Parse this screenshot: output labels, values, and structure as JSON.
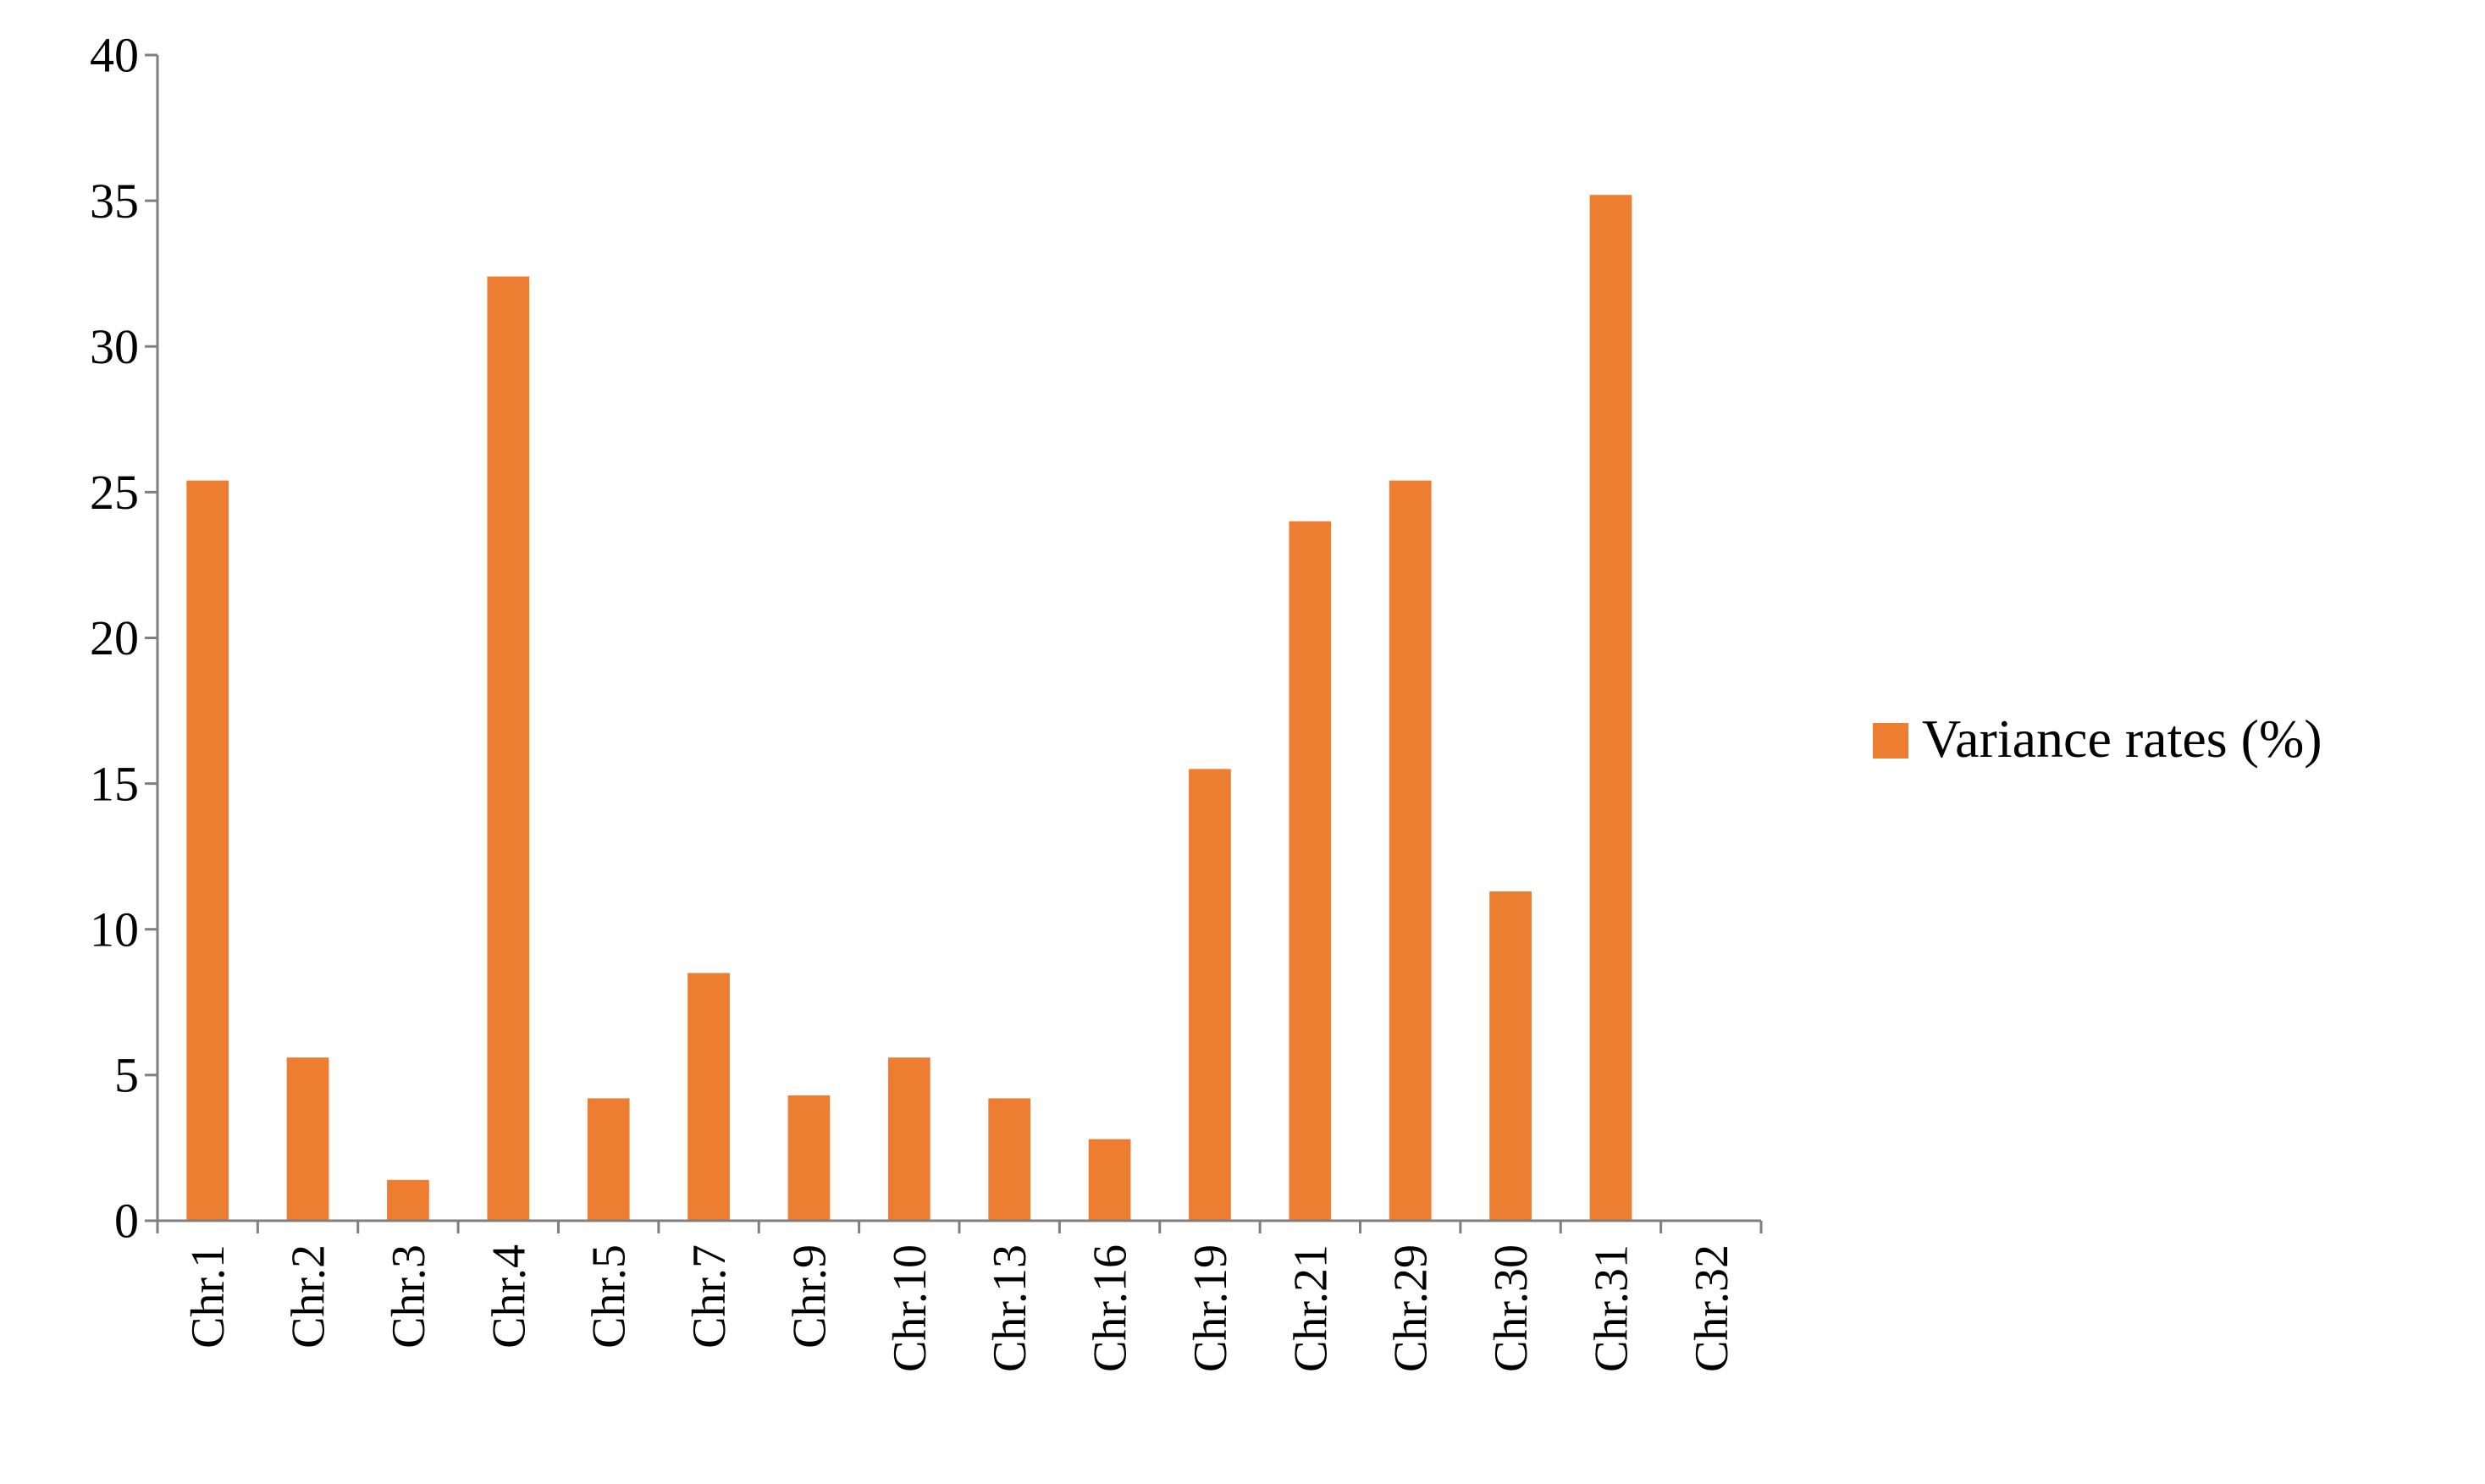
{
  "chart_data": {
    "type": "bar",
    "title": "",
    "xlabel": "",
    "ylabel": "",
    "categories": [
      "Chr.1",
      "Chr.2",
      "Chr.3",
      "Chr.4",
      "Chr.5",
      "Chr.7",
      "Chr.9",
      "Chr.10",
      "Chr.13",
      "Chr.16",
      "Chr.19",
      "Chr.21",
      "Chr.29",
      "Chr.30",
      "Chr.31",
      "Chr.32"
    ],
    "series": [
      {
        "name": "Variance rates (%)",
        "color": "#ED7D31",
        "values": [
          25.4,
          5.6,
          1.4,
          32.4,
          4.2,
          8.5,
          4.3,
          5.6,
          4.2,
          2.8,
          15.5,
          24.0,
          25.4,
          11.3,
          35.2,
          0
        ]
      }
    ],
    "ylim": [
      0,
      40
    ],
    "yticks": [
      "0",
      "5",
      "10",
      "15",
      "20",
      "25",
      "30",
      "35",
      "40"
    ],
    "grid": false,
    "legend_position": "right"
  }
}
